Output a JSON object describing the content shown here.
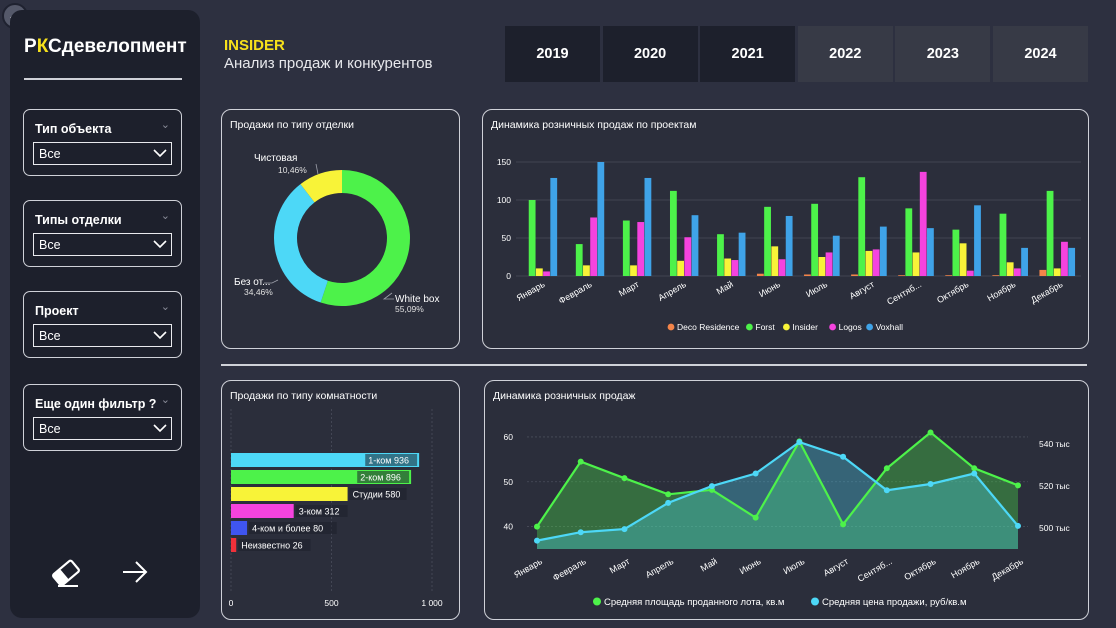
{
  "brand": {
    "prefix": "Р",
    "accent": "К",
    "rest": "Сдевелопмент"
  },
  "header": {
    "title": "INSIDER",
    "subtitle": "Анализ продаж и конкурентов"
  },
  "years": [
    {
      "label": "2019",
      "dim": false
    },
    {
      "label": "2020",
      "dim": false
    },
    {
      "label": "2021",
      "dim": false
    },
    {
      "label": "2022",
      "dim": true
    },
    {
      "label": "2023",
      "dim": true
    },
    {
      "label": "2024",
      "dim": true
    }
  ],
  "filters": [
    {
      "label": "Тип объекта",
      "value": "Все"
    },
    {
      "label": "Типы отделки",
      "value": "Все"
    },
    {
      "label": "Проект",
      "value": "Все"
    },
    {
      "label": "Еще один фильтр ?",
      "value": "Все"
    }
  ],
  "icons": {
    "back": "back-arrow-icon",
    "eraser": "eraser-icon",
    "next": "arrow-right-icon"
  },
  "colors": {
    "accent": "#f7e11b",
    "green": "#4df24a",
    "cyan": "#4dd8f7",
    "yellow": "#f8f338",
    "pink": "#f543de",
    "blue": "#3f55f0",
    "red": "#f0313a",
    "orange": "#f4854a",
    "sky": "#3fa3e8"
  },
  "chart_data": [
    {
      "type": "pie",
      "title": "Продажи по типу отделки",
      "donut": true,
      "slices": [
        {
          "label": "White box",
          "value": 55.09,
          "value_label": "55,09%",
          "color": "#4df24a"
        },
        {
          "label": "Без от...",
          "value": 34.46,
          "value_label": "34,46%",
          "color": "#4dd8f7"
        },
        {
          "label": "Чистовая",
          "value": 10.46,
          "value_label": "10,46%",
          "color": "#f8f338"
        }
      ]
    },
    {
      "type": "bar",
      "title": "Динамика розничных продаж по проектам",
      "categories": [
        "Январь",
        "Февраль",
        "Март",
        "Апрель",
        "Май",
        "Июнь",
        "Июль",
        "Август",
        "Сентяб...",
        "Октябрь",
        "Ноябрь",
        "Декабрь"
      ],
      "ylim": [
        0,
        150
      ],
      "yticks": [
        0,
        50,
        100,
        150
      ],
      "legend_position": "bottom",
      "series": [
        {
          "name": "Deco Residence",
          "color": "#f4854a",
          "values": [
            0,
            0,
            0,
            0,
            0,
            3,
            2,
            2,
            1,
            1,
            1,
            8
          ]
        },
        {
          "name": "Forst",
          "color": "#4df24a",
          "values": [
            100,
            42,
            73,
            112,
            55,
            91,
            95,
            130,
            89,
            61,
            82,
            112
          ]
        },
        {
          "name": "Insider",
          "color": "#f8f338",
          "values": [
            10,
            14,
            14,
            20,
            23,
            39,
            25,
            33,
            31,
            43,
            18,
            10
          ]
        },
        {
          "name": "Logos",
          "color": "#f543de",
          "values": [
            6,
            77,
            71,
            51,
            21,
            22,
            31,
            35,
            137,
            7,
            10,
            45
          ]
        },
        {
          "name": "Voxhall",
          "color": "#3fa3e8",
          "values": [
            129,
            150,
            129,
            80,
            57,
            79,
            53,
            65,
            63,
            93,
            37,
            37
          ]
        }
      ]
    },
    {
      "type": "bar",
      "orientation": "horizontal",
      "title": "Продажи по типу комнатности",
      "xlim": [
        0,
        1000
      ],
      "xticks": [
        {
          "v": 0,
          "label": "0"
        },
        {
          "v": 500,
          "label": "500"
        },
        {
          "v": 1000,
          "label": "1 000"
        }
      ],
      "bars": [
        {
          "label": "1-ком",
          "value": 936,
          "value_label": "936",
          "color": "#4dd8f7"
        },
        {
          "label": "2-ком",
          "value": 896,
          "value_label": "896",
          "color": "#4df24a"
        },
        {
          "label": "Студии",
          "value": 580,
          "value_label": "580",
          "color": "#f8f338"
        },
        {
          "label": "3-ком",
          "value": 312,
          "value_label": "312",
          "color": "#f543de"
        },
        {
          "label": "4-ком и более",
          "value": 80,
          "value_label": "80",
          "color": "#3f55f0"
        },
        {
          "label": "Неизвестно",
          "value": 26,
          "value_label": "26",
          "color": "#f0313a"
        }
      ]
    },
    {
      "type": "area",
      "title": "Динамика розничных продаж",
      "categories": [
        "Январь",
        "Февраль",
        "Март",
        "Апрель",
        "Май",
        "Июнь",
        "Июль",
        "Август",
        "Сентяб...",
        "Октябрь",
        "Ноябрь",
        "Декабрь"
      ],
      "y_left": {
        "ticks": [
          {
            "v": 40,
            "label": "40"
          },
          {
            "v": 50,
            "label": "50"
          },
          {
            "v": 60,
            "label": "60"
          }
        ],
        "range": [
          35,
          64
        ]
      },
      "y_right": {
        "ticks": [
          {
            "v": 500,
            "label": "500 тыс"
          },
          {
            "v": 520,
            "label": "520 тыс"
          },
          {
            "v": 540,
            "label": "540 тыс"
          }
        ],
        "range": [
          490,
          552
        ]
      },
      "legend_position": "bottom",
      "series": [
        {
          "name": "Средняя площадь проданного лота, кв.м",
          "axis": "left",
          "color": "#4df24a",
          "values": [
            40,
            54.5,
            50.8,
            47.2,
            48.2,
            42,
            59,
            40.5,
            53,
            61,
            53,
            49.2
          ]
        },
        {
          "name": "Средняя цена продажи, руб/кв.м",
          "axis": "right",
          "color": "#4dd8f7",
          "values": [
            494,
            498,
            499.5,
            512,
            520,
            526,
            541,
            534,
            518,
            521,
            526,
            501
          ]
        }
      ]
    }
  ]
}
